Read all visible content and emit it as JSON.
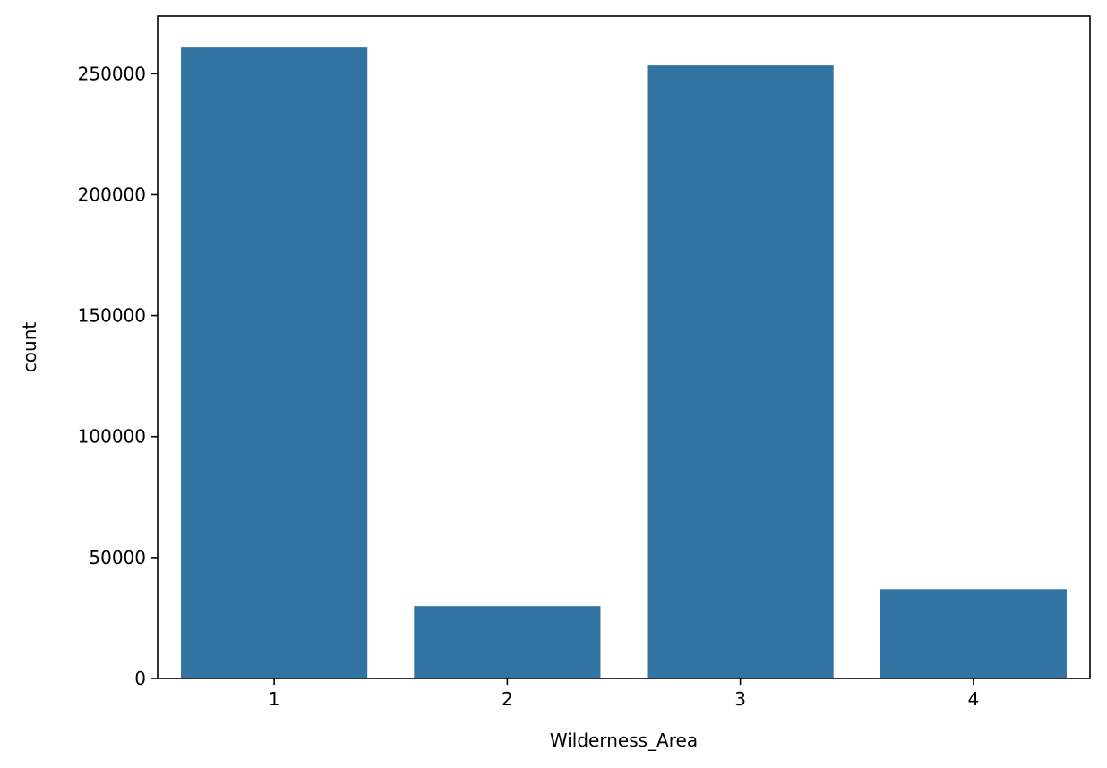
{
  "chart_data": {
    "type": "bar",
    "title": "",
    "xlabel": "Wilderness_Area",
    "ylabel": "count",
    "categories": [
      "1",
      "2",
      "3",
      "4"
    ],
    "values": [
      260800,
      29900,
      253400,
      36900
    ],
    "ylim": [
      0,
      273800
    ],
    "yticks": [
      0,
      50000,
      100000,
      150000,
      200000,
      250000
    ],
    "grid": false,
    "bar_color": "#3274a1"
  }
}
